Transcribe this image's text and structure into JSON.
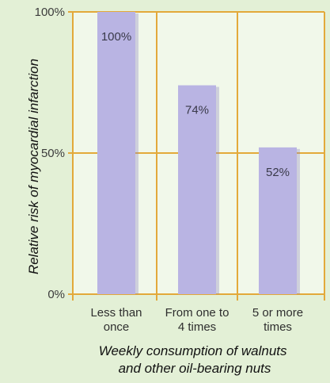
{
  "chart_data": {
    "type": "bar",
    "categories": [
      [
        "Less than",
        "once"
      ],
      [
        "From one to",
        "4 times"
      ],
      [
        "5 or more",
        "times"
      ]
    ],
    "values": [
      100,
      74,
      52
    ],
    "value_labels": [
      "100%",
      "74%",
      "52%"
    ],
    "ylabel": "Relative risk of myocardial infarction",
    "xlabel": [
      "Weekly consumption of walnuts",
      "and other oil-bearing nuts"
    ],
    "ylim": [
      0,
      100
    ],
    "yticks": [
      {
        "value": 0,
        "label": "0%"
      },
      {
        "value": 50,
        "label": "50%"
      },
      {
        "value": 100,
        "label": "100%"
      }
    ],
    "grid": true,
    "colors": {
      "background": "#e3f0d6",
      "plot_background": "#f1f8ea",
      "bar": "#b9b4e3",
      "bar_shadow": "#8c86bf",
      "grid": "#e3a93a"
    }
  }
}
